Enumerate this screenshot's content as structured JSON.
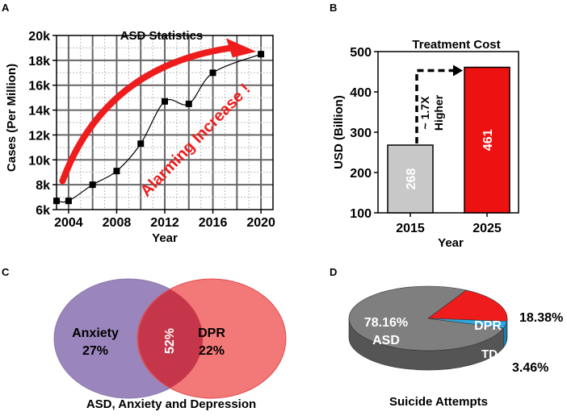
{
  "colors": {
    "red": "#ee1c1c",
    "grid": "#555555",
    "purple": "#9a86bd",
    "pink": "#f05a5a",
    "overlap": "#c6364a",
    "asd_gray": "#7f7f7f",
    "cyan": "#2aa8df",
    "bar_2015": "#c8c8c8",
    "bar_2025": "#ee1111"
  },
  "chart_data": [
    {
      "panel": "A",
      "type": "line",
      "title": "ASD Statistics",
      "xlabel": "Year",
      "ylabel": "Cases (Per Million)",
      "xlim": [
        2003,
        2021
      ],
      "ylim": [
        6000,
        20000
      ],
      "xticks": [
        2004,
        2008,
        2012,
        2016,
        2020
      ],
      "xtick_labels": [
        "2004",
        "2008",
        "2012",
        "2016",
        "2020"
      ],
      "yticks": [
        6000,
        8000,
        10000,
        12000,
        14000,
        16000,
        18000,
        20000
      ],
      "ytick_labels": [
        "6k",
        "8k",
        "10k",
        "12k",
        "14k",
        "16k",
        "18k",
        "20k"
      ],
      "grid": true,
      "x": [
        2003,
        2004,
        2006,
        2008,
        2010,
        2012,
        2014,
        2016,
        2020
      ],
      "y": [
        6700,
        6700,
        8000,
        9100,
        11300,
        14700,
        14500,
        17000,
        18500
      ],
      "annotation": "Alarming Increase !"
    },
    {
      "panel": "B",
      "type": "bar",
      "title": "Treatment Cost",
      "xlabel": "Year",
      "ylabel": "USD (Billion)",
      "categories": [
        "2015",
        "2025"
      ],
      "values": [
        268,
        461
      ],
      "value_labels": [
        "268",
        "461"
      ],
      "ylim": [
        100,
        500
      ],
      "yticks": [
        100,
        200,
        300,
        400,
        500
      ],
      "ytick_labels": [
        "100",
        "200",
        "300",
        "400",
        "500"
      ],
      "annotation_line1": "~ 1.7X",
      "annotation_line2": "Higher"
    },
    {
      "panel": "C",
      "type": "venn",
      "title": "ASD, Anxiety and Depression",
      "sets": [
        {
          "name": "Anxiety",
          "value": "27%"
        },
        {
          "name": "DPR",
          "value": "22%"
        }
      ],
      "overlap": "52%"
    },
    {
      "panel": "D",
      "type": "pie",
      "title": "Suicide Attempts",
      "slices": [
        {
          "label": "ASD",
          "value": 78.16,
          "text": "78.16%"
        },
        {
          "label": "DPR",
          "value": 18.38,
          "text": "18.38%"
        },
        {
          "label": "TD",
          "value": 3.46,
          "text": "3.46%"
        }
      ]
    }
  ],
  "panels": {
    "a": {
      "letter": "A"
    },
    "b": {
      "letter": "B"
    },
    "c": {
      "letter": "C"
    },
    "d": {
      "letter": "D"
    }
  }
}
